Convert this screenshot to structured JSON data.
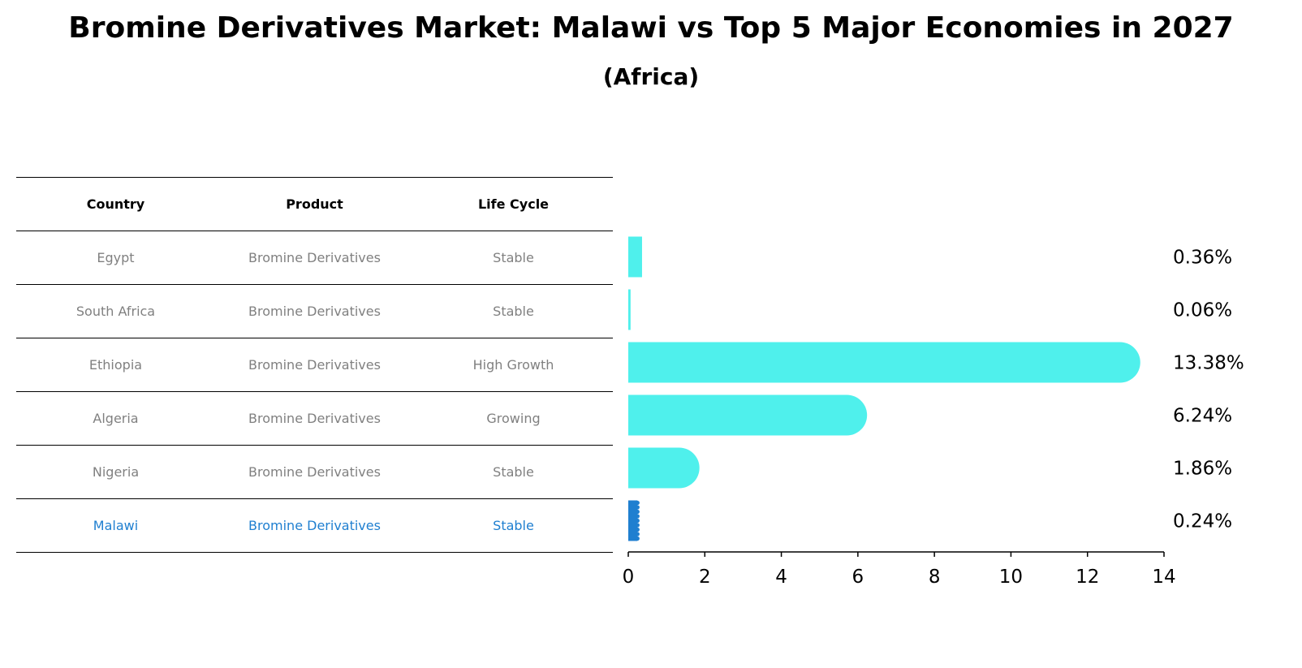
{
  "title": "Bromine Derivatives Market: Malawi vs Top 5 Major Economies in 2027",
  "subtitle": "(Africa)",
  "table": {
    "headers": [
      "Country",
      "Product",
      "Life Cycle"
    ],
    "rows": [
      [
        "Egypt",
        "Bromine Derivatives",
        "Stable"
      ],
      [
        "South Africa",
        "Bromine Derivatives",
        "Stable"
      ],
      [
        "Ethiopia",
        "Bromine Derivatives",
        "High Growth"
      ],
      [
        "Algeria",
        "Bromine Derivatives",
        "Growing"
      ],
      [
        "Nigeria",
        "Bromine Derivatives",
        "Stable"
      ],
      [
        "Malawi",
        "Bromine Derivatives",
        "Stable"
      ]
    ]
  },
  "colors": {
    "bar": "#4ff0ec",
    "highlight": "#1f7fd0",
    "text_muted": "#808080"
  },
  "chart_data": {
    "type": "bar",
    "orientation": "horizontal",
    "categories": [
      "Egypt",
      "South Africa",
      "Ethiopia",
      "Algeria",
      "Nigeria",
      "Malawi"
    ],
    "values": [
      0.36,
      0.06,
      13.38,
      6.24,
      1.86,
      0.24
    ],
    "value_labels": [
      "0.36%",
      "0.06%",
      "13.38%",
      "6.24%",
      "1.86%",
      "0.24%"
    ],
    "highlight_category": "Malawi",
    "xlim": [
      0,
      14
    ],
    "xticks": [
      0,
      2,
      4,
      6,
      8,
      10,
      12,
      14
    ],
    "grid": false
  }
}
